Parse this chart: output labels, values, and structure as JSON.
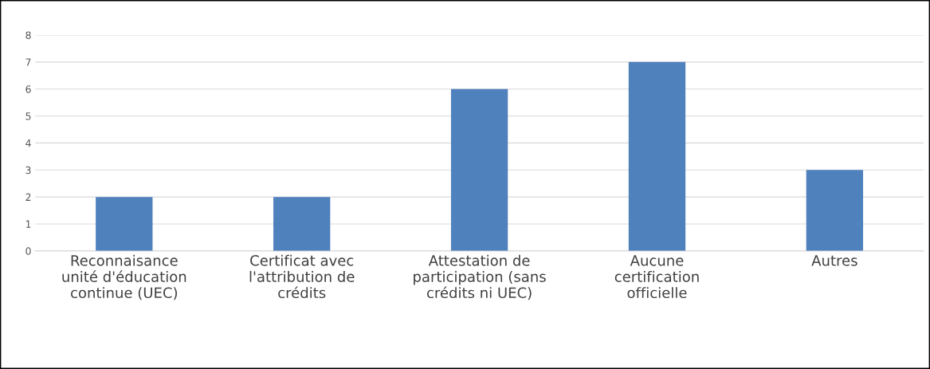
{
  "chart_data": {
    "type": "bar",
    "categories": [
      "Reconnaisance\nunité d'éducation\ncontinue (UEC)",
      "Certificat avec\nl'attribution de\ncrédits",
      "Attestation de\nparticipation (sans\ncrédits ni UEC)",
      "Aucune\ncertification\nofficielle",
      "Autres"
    ],
    "values": [
      2,
      2,
      6,
      7,
      3
    ],
    "color": "#4f81bd",
    "ylim": [
      0,
      8
    ],
    "yticks": [
      0,
      1,
      2,
      3,
      4,
      5,
      6,
      7,
      8
    ],
    "grid": "y",
    "legend": false
  }
}
